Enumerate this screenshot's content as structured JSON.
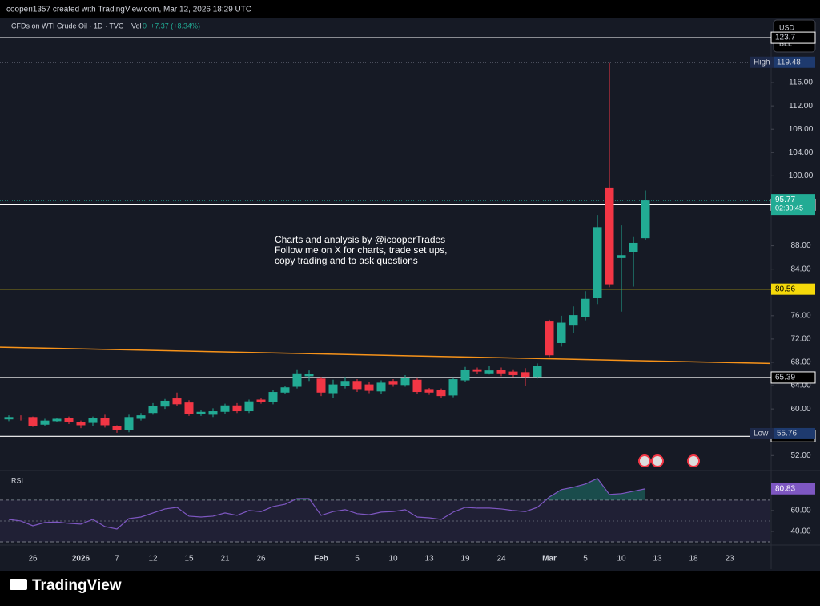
{
  "page": {
    "author_line": "cooperi1357 created with TradingView.com, Mar 12, 2026 18:29 UTC",
    "logo": "TradingView"
  },
  "chart_data": [
    {
      "type": "candlestick",
      "title": "CFDs on WTI Crude Oil · 1D · TVC",
      "volume_label": "Vol",
      "volume_value": 0,
      "change": "+7.37 (+8.34%)",
      "currency_buttons": [
        "USD",
        "BLL"
      ],
      "annotation": [
        "Charts and analysis by @icooperTrades",
        "Follow me on X for charts, trade set ups,",
        "copy trading and to ask questions"
      ],
      "categories": [
        null,
        null,
        "26",
        null,
        null,
        null,
        "2026",
        null,
        null,
        "7",
        null,
        null,
        "12",
        null,
        null,
        "15",
        null,
        null,
        "21",
        null,
        null,
        "26",
        null,
        null,
        null,
        null,
        "Feb",
        null,
        null,
        "5",
        null,
        null,
        "10",
        null,
        null,
        "13",
        null,
        null,
        "19",
        null,
        null,
        "24",
        null,
        null,
        null,
        "Mar",
        null,
        null,
        "5",
        null,
        null,
        "10",
        null,
        null,
        "13",
        null,
        null,
        "18",
        null,
        null,
        "23"
      ],
      "open": [
        58.2,
        58.5,
        58.6,
        57.3,
        57.9,
        58.4,
        57.8,
        57.6,
        58.5,
        57.0,
        56.4,
        58.3,
        59.3,
        60.4,
        61.8,
        61.1,
        59.1,
        59.0,
        59.5,
        60.6,
        59.6,
        61.6,
        61.2,
        62.8,
        63.8,
        65.6,
        65.2,
        62.7,
        64.0,
        64.8,
        64.2,
        63.0,
        64.8,
        64.1,
        65.0,
        63.4,
        63.2,
        62.3,
        64.9,
        66.8,
        66.1,
        66.7,
        66.4,
        66.3,
        65.5,
        75.0,
        71.3,
        74.3,
        75.8,
        79.0,
        98.0,
        85.9,
        86.9,
        89.3,
        null,
        null,
        null,
        null,
        null,
        null,
        null
      ],
      "high": [
        58.9,
        58.9,
        58.7,
        58.3,
        58.5,
        58.7,
        58.0,
        58.7,
        59.0,
        57.2,
        59.0,
        59.3,
        61.0,
        61.7,
        62.8,
        61.5,
        59.8,
        60.1,
        60.9,
        61.0,
        61.6,
        61.9,
        63.3,
        64.0,
        66.8,
        66.6,
        65.5,
        65.0,
        65.5,
        65.1,
        64.6,
        64.9,
        65.1,
        65.8,
        65.4,
        63.6,
        63.5,
        65.4,
        67.2,
        67.1,
        67.4,
        67.1,
        66.8,
        67.0,
        67.8,
        75.3,
        76.0,
        77.6,
        80.2,
        93.3,
        119.48,
        91.5,
        89.5,
        97.5,
        null,
        null,
        null,
        null,
        null,
        null,
        null
      ],
      "low": [
        57.9,
        58.0,
        56.9,
        57.0,
        57.8,
        57.4,
        56.7,
        57.1,
        56.8,
        55.9,
        56.0,
        58.0,
        59.0,
        60.0,
        60.5,
        58.8,
        58.8,
        58.6,
        59.2,
        59.3,
        59.3,
        60.9,
        60.8,
        62.5,
        63.5,
        64.8,
        62.2,
        61.8,
        63.5,
        62.9,
        62.7,
        62.6,
        63.8,
        63.8,
        62.5,
        62.4,
        61.9,
        62.0,
        64.6,
        66.0,
        65.9,
        65.6,
        65.5,
        63.9,
        65.2,
        68.9,
        70.7,
        73.0,
        75.2,
        78.0,
        80.9,
        76.7,
        81.0,
        88.9,
        null,
        null,
        null,
        null,
        null,
        null,
        null
      ],
      "close": [
        58.6,
        58.4,
        57.1,
        58.0,
        58.3,
        57.7,
        57.2,
        58.5,
        57.2,
        56.4,
        58.6,
        58.9,
        60.5,
        61.4,
        60.8,
        59.1,
        59.5,
        59.6,
        60.6,
        59.6,
        61.3,
        61.2,
        62.9,
        63.7,
        66.1,
        66.0,
        62.8,
        64.2,
        64.8,
        63.4,
        63.1,
        64.5,
        64.2,
        65.3,
        62.9,
        62.8,
        62.2,
        65.1,
        66.7,
        66.4,
        66.6,
        66.1,
        65.8,
        65.5,
        67.4,
        69.2,
        74.8,
        76.1,
        78.9,
        91.2,
        81.4,
        86.4,
        88.5,
        95.77,
        null,
        null,
        null,
        null,
        null,
        null,
        null
      ],
      "up_color": "#22ab94",
      "down_color": "#f23645",
      "ylim": [
        49.7,
        124.4
      ],
      "yticks": [
        {
          "value": 116,
          "label": "116.00"
        },
        {
          "value": 112,
          "label": "112.00"
        },
        {
          "value": 108,
          "label": "108.00"
        },
        {
          "value": 104,
          "label": "104.00"
        },
        {
          "value": 100,
          "label": "100.00"
        },
        {
          "value": 88,
          "label": "88.00"
        },
        {
          "value": 84,
          "label": "84.00"
        },
        {
          "value": 76,
          "label": "76.00"
        },
        {
          "value": 72,
          "label": "72.00"
        },
        {
          "value": 68,
          "label": "68.00"
        },
        {
          "value": 64,
          "label": "64.00"
        },
        {
          "value": 60,
          "label": "60.00"
        },
        {
          "value": 52,
          "label": "52.00"
        }
      ],
      "high_label": {
        "label": "High",
        "value": 119.48
      },
      "low_label": {
        "label": "Low",
        "value": 55.76
      },
      "countdown": "02:30:45",
      "levels": [
        {
          "value": 123.7,
          "color": "#ffffff"
        },
        {
          "value": 95.04,
          "color": "#ffffff"
        },
        {
          "value": 80.56,
          "color": "#f5d90a"
        },
        {
          "value": 65.39,
          "color": "#ffffff"
        },
        {
          "value": {
            "value": 55.3,
            "label": "55.30"
          },
          "color": "#ffffff"
        }
      ],
      "trendline": {
        "values": [
          70.6,
          67.8
        ],
        "color": "#f7931a"
      }
    },
    {
      "type": "line",
      "title": "RSI",
      "color": "#7e57c2",
      "values": [
        51.5,
        50,
        45.4,
        48.5,
        49,
        47.7,
        47,
        51.5,
        44.6,
        42.3,
        52.3,
        53.8,
        57.7,
        61.5,
        63,
        54.6,
        53.8,
        54.6,
        57.7,
        55.4,
        60,
        59,
        63.8,
        66,
        71.5,
        71.5,
        55.4,
        59,
        60.8,
        57,
        56,
        58.5,
        59,
        60.8,
        53.8,
        53,
        51.5,
        58.5,
        63,
        62.3,
        62.3,
        61.5,
        60,
        59,
        63,
        73,
        80,
        82.3,
        85.4,
        90.8,
        75.4,
        76.2,
        78.5,
        80.83,
        null,
        null,
        null,
        null,
        null,
        null,
        null
      ],
      "ylim": [
        30,
        96
      ],
      "band": [
        30,
        70
      ],
      "yticks": [
        {
          "value": 60,
          "label": "60.00"
        },
        {
          "value": 40,
          "label": "40.00"
        }
      ]
    }
  ]
}
